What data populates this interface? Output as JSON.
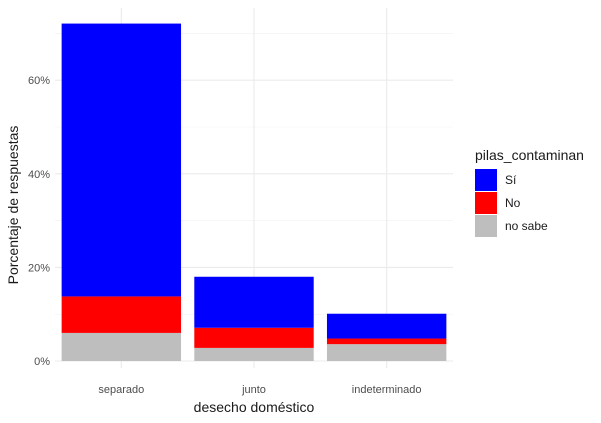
{
  "chart_data": {
    "type": "bar",
    "stacked": true,
    "xlabel": "desecho doméstico",
    "ylabel": "Porcentaje de respuestas",
    "categories": [
      "separado",
      "junto",
      "indeterminado"
    ],
    "y_ticks": [
      0,
      20,
      40,
      60
    ],
    "y_tick_labels": [
      "0%",
      "20%",
      "40%",
      "60%"
    ],
    "ylim": [
      0,
      72
    ],
    "grid": true,
    "legend": {
      "title": "pilas_contaminan",
      "position": "right",
      "entries": [
        "Sí",
        "No",
        "no sabe"
      ]
    },
    "series": [
      {
        "name": "no sabe",
        "color": "#bebebe",
        "values": [
          6.0,
          2.8,
          3.6
        ]
      },
      {
        "name": "No",
        "color": "#ff0000",
        "values": [
          7.8,
          4.3,
          1.2
        ]
      },
      {
        "name": "Sí",
        "color": "#0000ff",
        "values": [
          58.3,
          10.9,
          5.3
        ]
      }
    ]
  }
}
